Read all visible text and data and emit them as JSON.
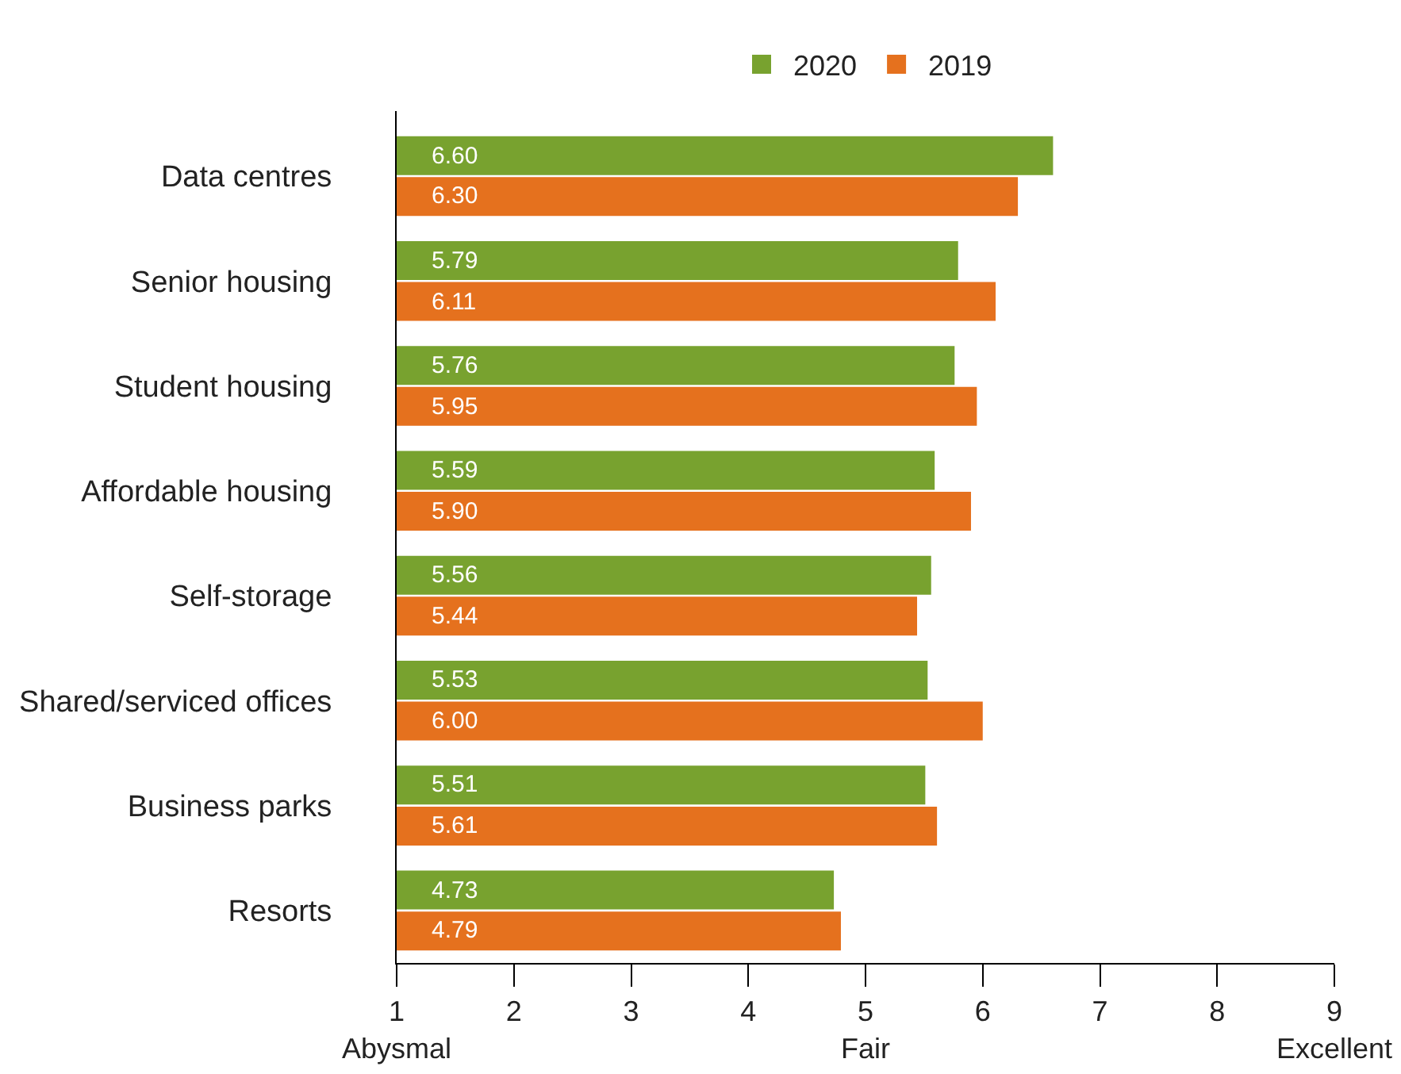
{
  "chart_data": {
    "type": "bar",
    "orientation": "horizontal",
    "categories": [
      "Data centres",
      "Senior housing",
      "Student housing",
      "Affordable housing",
      "Self-storage",
      "Shared/serviced offices",
      "Business parks",
      "Resorts"
    ],
    "series": [
      {
        "name": "2020",
        "color": "#78a22f",
        "values": [
          6.6,
          5.79,
          5.76,
          5.59,
          5.56,
          5.53,
          5.51,
          4.73
        ],
        "value_labels": [
          "6.60",
          "5.79",
          "5.76",
          "5.59",
          "5.56",
          "5.53",
          "5.51",
          "4.73"
        ]
      },
      {
        "name": "2019",
        "color": "#e5711e",
        "values": [
          6.3,
          6.11,
          5.95,
          5.9,
          5.44,
          6.0,
          5.61,
          4.79
        ],
        "value_labels": [
          "6.30",
          "6.11",
          "5.95",
          "5.90",
          "5.44",
          "6.00",
          "5.61",
          "4.79"
        ]
      }
    ],
    "xlim": [
      1,
      9
    ],
    "xticks": [
      {
        "value": 1,
        "label": "1\nAbysmal"
      },
      2,
      3,
      4,
      {
        "value": 5,
        "label": "5\nFair"
      },
      6,
      7,
      8,
      {
        "value": 9,
        "label": "9\nExcellent"
      }
    ],
    "grid": false,
    "legend": "top"
  }
}
